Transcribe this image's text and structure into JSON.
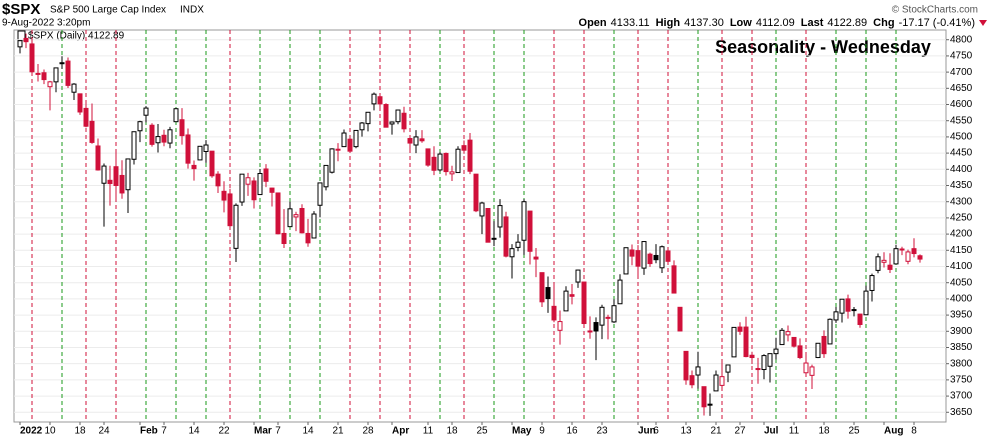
{
  "chart_data": {
    "type": "candlestick",
    "ticker": "$SPX",
    "name": "S&P 500 Large Cap Index",
    "exchange": "INDX",
    "date": "9-Aug-2022 3:20pm",
    "copyright": "© StockCharts.com",
    "quote": [
      {
        "label": "Open",
        "value": "4133.11"
      },
      {
        "label": "High",
        "value": "4137.30"
      },
      {
        "label": "Low",
        "value": "4112.09"
      },
      {
        "label": "Last",
        "value": "4122.89"
      },
      {
        "label": "Chg",
        "value": "-17.17 (-0.41%)"
      }
    ],
    "legend": "$SPX (Daily) 4122.89",
    "title": "Seasonality - Wednesday",
    "categories": [
      "2022",
      null,
      null,
      null,
      null,
      "10",
      null,
      null,
      null,
      null,
      "18",
      null,
      null,
      null,
      "24",
      null,
      null,
      null,
      null,
      null,
      "Feb",
      null,
      null,
      null,
      "7",
      null,
      null,
      null,
      null,
      "14",
      null,
      null,
      null,
      null,
      "22",
      null,
      null,
      null,
      null,
      "Mar",
      null,
      null,
      null,
      "7",
      null,
      null,
      null,
      null,
      "14",
      null,
      null,
      null,
      null,
      "21",
      null,
      null,
      null,
      null,
      "28",
      null,
      null,
      null,
      "Apr",
      null,
      null,
      null,
      null,
      null,
      "11",
      null,
      null,
      null,
      "18",
      null,
      null,
      null,
      null,
      "25",
      null,
      null,
      null,
      null,
      "May",
      null,
      null,
      null,
      null,
      "9",
      null,
      null,
      null,
      null,
      "16",
      null,
      null,
      null,
      null,
      "23",
      null,
      null,
      null,
      null,
      null,
      "Jun",
      null,
      null,
      "6",
      null,
      null,
      null,
      null,
      "13",
      null,
      null,
      null,
      null,
      "21",
      null,
      null,
      null,
      "27",
      null,
      null,
      null,
      "Jul",
      null,
      null,
      null,
      null,
      "11",
      null,
      null,
      null,
      null,
      "18",
      null,
      null,
      null,
      null,
      "25",
      null,
      null,
      null,
      null,
      "Aug",
      null,
      null,
      null,
      null,
      "8",
      null
    ],
    "ohlc": [
      [
        4778,
        4797,
        4758,
        4797
      ],
      [
        4804,
        4819,
        4774,
        4794
      ],
      [
        4787,
        4798,
        4699,
        4701
      ],
      [
        4693,
        4725,
        4671,
        4696
      ],
      [
        4698,
        4708,
        4663,
        4677
      ],
      [
        4655,
        4673,
        4582,
        4670
      ],
      [
        4670,
        4714,
        4638,
        4713
      ],
      [
        4729,
        4749,
        4710,
        4726
      ],
      [
        4734,
        4745,
        4651,
        4659
      ],
      [
        4638,
        4666,
        4614,
        4663
      ],
      [
        4633,
        4633,
        4568,
        4577
      ],
      [
        4588,
        4611,
        4530,
        4533
      ],
      [
        4548,
        4603,
        4479,
        4483
      ],
      [
        4472,
        4495,
        4396,
        4398
      ],
      [
        4357,
        4418,
        4223,
        4410
      ],
      [
        4366,
        4411,
        4288,
        4356
      ],
      [
        4408,
        4453,
        4305,
        4350
      ],
      [
        4381,
        4428,
        4309,
        4327
      ],
      [
        4337,
        4432,
        4265,
        4432
      ],
      [
        4431,
        4516,
        4415,
        4516
      ],
      [
        4519,
        4550,
        4484,
        4547
      ],
      [
        4567,
        4595,
        4545,
        4589
      ],
      [
        4536,
        4542,
        4470,
        4477
      ],
      [
        4482,
        4540,
        4452,
        4501
      ],
      [
        4505,
        4522,
        4471,
        4484
      ],
      [
        4481,
        4531,
        4465,
        4522
      ],
      [
        4547,
        4589,
        4547,
        4587
      ],
      [
        4553,
        4589,
        4476,
        4504
      ],
      [
        4506,
        4526,
        4402,
        4419
      ],
      [
        4412,
        4427,
        4365,
        4402
      ],
      [
        4429,
        4472,
        4430,
        4471
      ],
      [
        4455,
        4490,
        4420,
        4475
      ],
      [
        4456,
        4456,
        4374,
        4380
      ],
      [
        4385,
        4394,
        4327,
        4349
      ],
      [
        4332,
        4363,
        4267,
        4305
      ],
      [
        4324,
        4340,
        4222,
        4226
      ],
      [
        4156,
        4295,
        4114,
        4289
      ],
      [
        4299,
        4385,
        4287,
        4385
      ],
      [
        4354,
        4389,
        4318,
        4374
      ],
      [
        4364,
        4375,
        4279,
        4306
      ],
      [
        4322,
        4401,
        4322,
        4387
      ],
      [
        4401,
        4416,
        4345,
        4363
      ],
      [
        4342,
        4343,
        4285,
        4329
      ],
      [
        4327,
        4327,
        4199,
        4201
      ],
      [
        4202,
        4277,
        4157,
        4171
      ],
      [
        4223,
        4300,
        4223,
        4278
      ],
      [
        4253,
        4269,
        4209,
        4260
      ],
      [
        4279,
        4292,
        4202,
        4204
      ],
      [
        4202,
        4247,
        4161,
        4173
      ],
      [
        4188,
        4271,
        4188,
        4262
      ],
      [
        4289,
        4358,
        4252,
        4358
      ],
      [
        4346,
        4412,
        4335,
        4412
      ],
      [
        4391,
        4465,
        4387,
        4463
      ],
      [
        4462,
        4481,
        4425,
        4461
      ],
      [
        4470,
        4523,
        4469,
        4512
      ],
      [
        4493,
        4501,
        4455,
        4456
      ],
      [
        4470,
        4520,
        4465,
        4520
      ],
      [
        4522,
        4546,
        4501,
        4543
      ],
      [
        4541,
        4575,
        4517,
        4576
      ],
      [
        4602,
        4637,
        4582,
        4632
      ],
      [
        4624,
        4627,
        4582,
        4602
      ],
      [
        4600,
        4604,
        4531,
        4530
      ],
      [
        4540,
        4548,
        4507,
        4546
      ],
      [
        4547,
        4583,
        4539,
        4583
      ],
      [
        4573,
        4593,
        4514,
        4525
      ],
      [
        4495,
        4504,
        4452,
        4481
      ],
      [
        4475,
        4521,
        4450,
        4500
      ],
      [
        4494,
        4521,
        4482,
        4488
      ],
      [
        4463,
        4464,
        4408,
        4413
      ],
      [
        4437,
        4471,
        4382,
        4397
      ],
      [
        4398,
        4453,
        4393,
        4447
      ],
      [
        4449,
        4452,
        4381,
        4393
      ],
      [
        4386,
        4411,
        4364,
        4392
      ],
      [
        4390,
        4471,
        4390,
        4462
      ],
      [
        4473,
        4489,
        4448,
        4459
      ],
      [
        4490,
        4512,
        4385,
        4394
      ],
      [
        4385,
        4386,
        4268,
        4272
      ],
      [
        4256,
        4300,
        4200,
        4296
      ],
      [
        4279,
        4279,
        4175,
        4175
      ],
      [
        4187,
        4240,
        4163,
        4184
      ],
      [
        4222,
        4308,
        4189,
        4288
      ],
      [
        4253,
        4269,
        4128,
        4132
      ],
      [
        4130,
        4169,
        4063,
        4155
      ],
      [
        4159,
        4200,
        4147,
        4175
      ],
      [
        4181,
        4308,
        4136,
        4300
      ],
      [
        4271,
        4271,
        4106,
        4147
      ],
      [
        4129,
        4157,
        4067,
        4123
      ],
      [
        4081,
        4081,
        3975,
        3991
      ],
      [
        4035,
        4069,
        3957,
        4001
      ],
      [
        3977,
        4050,
        3928,
        3935
      ],
      [
        3903,
        3964,
        3859,
        3930
      ],
      [
        3963,
        4039,
        3963,
        4024
      ],
      [
        4013,
        4046,
        3983,
        4008
      ],
      [
        4052,
        4090,
        4034,
        4089
      ],
      [
        4052,
        4052,
        3912,
        3924
      ],
      [
        3900,
        3946,
        3877,
        3901
      ],
      [
        3927,
        3943,
        3811,
        3901
      ],
      [
        3919,
        3982,
        3876,
        3974
      ],
      [
        3943,
        3951,
        3875,
        3941
      ],
      [
        3929,
        3999,
        3926,
        3979
      ],
      [
        3985,
        4076,
        3985,
        4058
      ],
      [
        4077,
        4158,
        4077,
        4158
      ],
      [
        4151,
        4168,
        4104,
        4132
      ],
      [
        4149,
        4166,
        4073,
        4101
      ],
      [
        4095,
        4178,
        4074,
        4177
      ],
      [
        4138,
        4143,
        4099,
        4109
      ],
      [
        4134,
        4169,
        4110,
        4121
      ],
      [
        4096,
        4165,
        4080,
        4161
      ],
      [
        4148,
        4160,
        4107,
        4116
      ],
      [
        4102,
        4119,
        4017,
        4018
      ],
      [
        3974,
        3974,
        3900,
        3901
      ],
      [
        3838,
        3839,
        3735,
        3750
      ],
      [
        3763,
        3779,
        3724,
        3735
      ],
      [
        3765,
        3837,
        3723,
        3790
      ],
      [
        3729,
        3729,
        3640,
        3667
      ],
      [
        3675,
        3708,
        3639,
        3675
      ],
      [
        3716,
        3779,
        3716,
        3765
      ],
      [
        3733,
        3802,
        3717,
        3760
      ],
      [
        3774,
        3796,
        3743,
        3796
      ],
      [
        3821,
        3913,
        3821,
        3912
      ],
      [
        3913,
        3928,
        3889,
        3900
      ],
      [
        3913,
        3945,
        3820,
        3822
      ],
      [
        3826,
        3837,
        3799,
        3819
      ],
      [
        3785,
        3818,
        3738,
        3785
      ],
      [
        3782,
        3829,
        3752,
        3825
      ],
      [
        3792,
        3832,
        3742,
        3831
      ],
      [
        3831,
        3880,
        3813,
        3845
      ],
      [
        3859,
        3910,
        3859,
        3903
      ],
      [
        3889,
        3918,
        3869,
        3899
      ],
      [
        3881,
        3881,
        3850,
        3854
      ],
      [
        3855,
        3878,
        3814,
        3819
      ],
      [
        3772,
        3829,
        3759,
        3802
      ],
      [
        3764,
        3797,
        3722,
        3790
      ],
      [
        3819,
        3863,
        3817,
        3863
      ],
      [
        3884,
        3903,
        3818,
        3831
      ],
      [
        3861,
        3940,
        3861,
        3937
      ],
      [
        3935,
        3975,
        3926,
        3960
      ],
      [
        3956,
        3999,
        3927,
        3999
      ],
      [
        4000,
        4013,
        3939,
        3962
      ],
      [
        3965,
        3975,
        3946,
        3967
      ],
      [
        3953,
        3954,
        3911,
        3921
      ],
      [
        3951,
        4041,
        3951,
        4024
      ],
      [
        4026,
        4078,
        3992,
        4072
      ],
      [
        4088,
        4140,
        4079,
        4130
      ],
      [
        4113,
        4144,
        4097,
        4119
      ],
      [
        4104,
        4141,
        4080,
        4091
      ],
      [
        4108,
        4167,
        4107,
        4155
      ],
      [
        4154,
        4161,
        4135,
        4152
      ],
      [
        4116,
        4152,
        4107,
        4145
      ],
      [
        4155,
        4187,
        4128,
        4140
      ],
      [
        4133.11,
        4137.3,
        4112.09,
        4122.89
      ]
    ],
    "up_color": "#000000",
    "down_color": "#d0103a",
    "title_color": "#1010c8",
    "ylim": [
      3620,
      4830
    ],
    "yticks": [
      3650,
      3700,
      3750,
      3800,
      3850,
      3900,
      3950,
      4000,
      4050,
      4100,
      4150,
      4200,
      4250,
      4300,
      4350,
      4400,
      4450,
      4500,
      4550,
      4600,
      4650,
      4700,
      4750,
      4800
    ],
    "grid": true
  }
}
